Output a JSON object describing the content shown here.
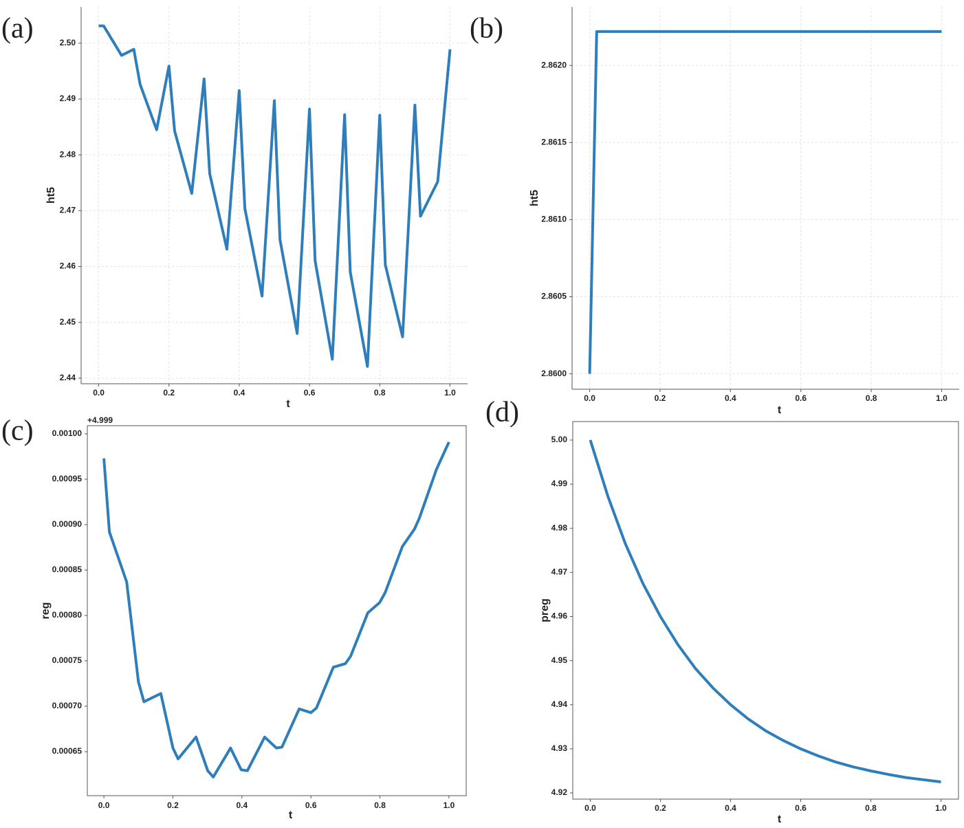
{
  "chart_data": [
    {
      "type": "line",
      "label": "(a)",
      "xlabel": "t",
      "ylabel": "ht5",
      "color": "#2e7ebc",
      "grid": true,
      "x": [
        0,
        0.014,
        0.065,
        0.1,
        0.118,
        0.165,
        0.2,
        0.216,
        0.265,
        0.3,
        0.316,
        0.365,
        0.4,
        0.416,
        0.465,
        0.5,
        0.516,
        0.565,
        0.6,
        0.616,
        0.665,
        0.7,
        0.716,
        0.765,
        0.8,
        0.816,
        0.865,
        0.9,
        0.916,
        0.965,
        1.0
      ],
      "values": [
        2.5031,
        2.5031,
        2.4978,
        2.4989,
        2.4926,
        2.4845,
        2.4959,
        2.4843,
        2.4731,
        2.4936,
        2.4766,
        2.4631,
        2.4915,
        2.4704,
        2.4547,
        2.4897,
        2.4648,
        2.448,
        2.4882,
        2.461,
        2.4434,
        2.4872,
        2.459,
        2.4421,
        2.4871,
        2.4603,
        2.4474,
        2.4889,
        2.469,
        2.4752,
        2.4989
      ],
      "xlim": [
        -0.05,
        1.05
      ],
      "xticks": [
        {
          "value": 0,
          "label": "0.0"
        },
        0.2,
        0.4,
        0.6,
        0.8,
        {
          "value": 1,
          "label": "1.0"
        }
      ],
      "ylim": [
        2.439,
        2.5065
      ],
      "yticks": [
        2.44,
        2.45,
        2.46,
        2.47,
        2.48,
        2.49,
        {
          "value": 2.5,
          "label": "2.50"
        }
      ]
    },
    {
      "type": "line",
      "label": "(b)",
      "xlabel": "t",
      "ylabel": "ht5",
      "color": "#2e7ebc",
      "grid": true,
      "x": [
        0,
        0.02,
        1.0
      ],
      "values": [
        2.86,
        2.86222,
        2.86222
      ],
      "xlim": [
        -0.05,
        1.05
      ],
      "xticks": [
        {
          "value": 0,
          "label": "0.0"
        },
        0.2,
        0.4,
        0.6,
        0.8,
        {
          "value": 1,
          "label": "1.0"
        }
      ],
      "ylim": [
        2.8599,
        2.86238
      ],
      "yticks": [
        {
          "value": 2.86,
          "label": "2.8600"
        },
        2.8605,
        {
          "value": 2.861,
          "label": "2.8610"
        },
        2.8615,
        {
          "value": 2.862,
          "label": "2.8620"
        }
      ]
    },
    {
      "type": "line",
      "label": "(c)",
      "xlabel": "t",
      "ylabel": "reg",
      "offset_text": "+4.999",
      "color": "#2e7ebc",
      "grid": false,
      "x": [
        0,
        0.016,
        0.066,
        0.1,
        0.116,
        0.165,
        0.2,
        0.215,
        0.267,
        0.301,
        0.317,
        0.367,
        0.398,
        0.416,
        0.466,
        0.5,
        0.516,
        0.566,
        0.6,
        0.616,
        0.665,
        0.7,
        0.715,
        0.765,
        0.799,
        0.815,
        0.865,
        0.9,
        0.914,
        0.964,
        1.0
      ],
      "values": [
        0.000973,
        0.000892,
        0.000837,
        0.000727,
        0.000705,
        0.000714,
        0.000654,
        0.000642,
        0.000666,
        0.000629,
        0.000622,
        0.000654,
        0.00063,
        0.000629,
        0.000666,
        0.000654,
        0.000655,
        0.000697,
        0.000693,
        0.000698,
        0.000743,
        0.000747,
        0.000755,
        0.000803,
        0.000814,
        0.000825,
        0.000876,
        0.000895,
        0.000907,
        0.000961,
        0.000991
      ],
      "xlim": [
        -0.048,
        1.05
      ],
      "xticks": [
        {
          "value": 0,
          "label": "0.0"
        },
        0.2,
        0.4,
        0.6,
        0.8,
        {
          "value": 1,
          "label": "1.0"
        }
      ],
      "ylim": [
        0.0006015,
        0.001009
      ],
      "yticks": [
        0.00065,
        {
          "value": 0.0007,
          "label": "0.00070"
        },
        0.00075,
        {
          "value": 0.0008,
          "label": "0.00080"
        },
        0.00085,
        {
          "value": 0.0009,
          "label": "0.00090"
        },
        0.00095,
        {
          "value": 0.001,
          "label": "0.00100"
        }
      ]
    },
    {
      "type": "line",
      "label": "(d)",
      "xlabel": "t",
      "ylabel": "preg",
      "color": "#2e7ebc",
      "grid": false,
      "x": [
        0,
        0.05,
        0.1,
        0.15,
        0.2,
        0.25,
        0.3,
        0.35,
        0.4,
        0.45,
        0.5,
        0.55,
        0.6,
        0.65,
        0.7,
        0.75,
        0.8,
        0.85,
        0.9,
        0.95,
        1.0
      ],
      "values": [
        5.0,
        4.9873,
        4.9765,
        4.9675,
        4.96,
        4.9536,
        4.9482,
        4.9438,
        4.94,
        4.9368,
        4.9341,
        4.9319,
        4.93,
        4.9284,
        4.927,
        4.9259,
        4.925,
        4.9242,
        4.9235,
        4.923,
        4.9225
      ],
      "xlim": [
        -0.05,
        1.05
      ],
      "xticks": [
        {
          "value": 0,
          "label": "0.0"
        },
        0.2,
        0.4,
        0.6,
        0.8,
        {
          "value": 1,
          "label": "1.0"
        }
      ],
      "ylim": [
        4.9186,
        5.0042
      ],
      "yticks": [
        4.92,
        4.93,
        4.94,
        4.95,
        4.96,
        4.97,
        4.98,
        4.99,
        {
          "value": 5,
          "label": "5.00"
        }
      ]
    }
  ]
}
